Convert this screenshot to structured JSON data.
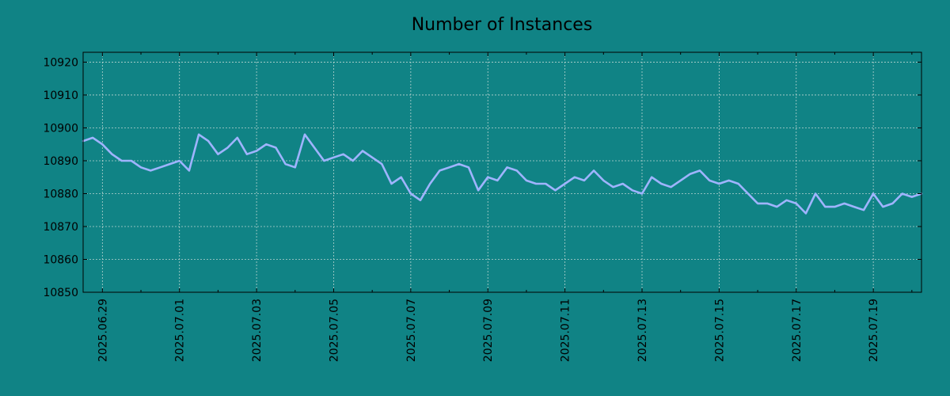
{
  "chart_data": {
    "type": "line",
    "title": "Number of Instances",
    "xlabel": "",
    "ylabel": "",
    "x_tick_labels": [
      "2025.06.29",
      "2025.07.01",
      "2025.07.03",
      "2025.07.05",
      "2025.07.07",
      "2025.07.09",
      "2025.07.11",
      "2025.07.13",
      "2025.07.15",
      "2025.07.17",
      "2025.07.19"
    ],
    "y_ticks": [
      10850,
      10860,
      10870,
      10880,
      10890,
      10900,
      10910,
      10920
    ],
    "xlim": [
      "2025-06-28 12:00",
      "2025-07-20 06:00"
    ],
    "ylim": [
      10850,
      10923
    ],
    "grid": true,
    "legend": "none",
    "colors": {
      "background": "#108385",
      "line": "#9fb4ff",
      "axes": "#000000",
      "grid": "#b7d4d0"
    },
    "series": [
      {
        "x": [
          "2025-06-28 12:00",
          "2025-06-28 18:00",
          "2025-06-29 00:00",
          "2025-06-29 06:00",
          "2025-06-29 12:00",
          "2025-06-29 18:00",
          "2025-06-30 00:00",
          "2025-06-30 06:00",
          "2025-06-30 12:00",
          "2025-06-30 18:00",
          "2025-07-01 00:00",
          "2025-07-01 06:00",
          "2025-07-01 12:00",
          "2025-07-01 18:00",
          "2025-07-02 00:00",
          "2025-07-02 06:00",
          "2025-07-02 12:00",
          "2025-07-02 18:00",
          "2025-07-03 00:00",
          "2025-07-03 06:00",
          "2025-07-03 12:00",
          "2025-07-03 18:00",
          "2025-07-04 00:00",
          "2025-07-04 06:00",
          "2025-07-04 12:00",
          "2025-07-04 18:00",
          "2025-07-05 00:00",
          "2025-07-05 06:00",
          "2025-07-05 12:00",
          "2025-07-05 18:00",
          "2025-07-06 00:00",
          "2025-07-06 06:00",
          "2025-07-06 12:00",
          "2025-07-06 18:00",
          "2025-07-07 00:00",
          "2025-07-07 06:00",
          "2025-07-07 12:00",
          "2025-07-07 18:00",
          "2025-07-08 00:00",
          "2025-07-08 06:00",
          "2025-07-08 12:00",
          "2025-07-08 18:00",
          "2025-07-09 00:00",
          "2025-07-09 06:00",
          "2025-07-09 12:00",
          "2025-07-09 18:00",
          "2025-07-10 00:00",
          "2025-07-10 06:00",
          "2025-07-10 12:00",
          "2025-07-10 18:00",
          "2025-07-11 00:00",
          "2025-07-11 06:00",
          "2025-07-11 12:00",
          "2025-07-11 18:00",
          "2025-07-12 00:00",
          "2025-07-12 06:00",
          "2025-07-12 12:00",
          "2025-07-12 18:00",
          "2025-07-13 00:00",
          "2025-07-13 06:00",
          "2025-07-13 12:00",
          "2025-07-13 18:00",
          "2025-07-14 00:00",
          "2025-07-14 06:00",
          "2025-07-14 12:00",
          "2025-07-14 18:00",
          "2025-07-15 00:00",
          "2025-07-15 06:00",
          "2025-07-15 12:00",
          "2025-07-15 18:00",
          "2025-07-16 00:00",
          "2025-07-16 06:00",
          "2025-07-16 12:00",
          "2025-07-16 18:00",
          "2025-07-17 00:00",
          "2025-07-17 06:00",
          "2025-07-17 12:00",
          "2025-07-17 18:00",
          "2025-07-18 00:00",
          "2025-07-18 06:00",
          "2025-07-18 12:00",
          "2025-07-18 18:00",
          "2025-07-19 00:00",
          "2025-07-19 06:00",
          "2025-07-19 12:00",
          "2025-07-19 18:00",
          "2025-07-20 00:00",
          "2025-07-20 06:00"
        ],
        "y": [
          10896,
          10897,
          10895,
          10892,
          10890,
          10890,
          10888,
          10887,
          10888,
          10889,
          10890,
          10887,
          10898,
          10896,
          10892,
          10894,
          10897,
          10892,
          10893,
          10895,
          10894,
          10889,
          10888,
          10898,
          10894,
          10890,
          10891,
          10892,
          10890,
          10893,
          10891,
          10889,
          10883,
          10885,
          10880,
          10878,
          10883,
          10887,
          10888,
          10889,
          10888,
          10881,
          10885,
          10884,
          10888,
          10887,
          10884,
          10883,
          10883,
          10881,
          10883,
          10885,
          10884,
          10887,
          10884,
          10882,
          10883,
          10881,
          10880,
          10885,
          10883,
          10882,
          10884,
          10886,
          10887,
          10884,
          10883,
          10884,
          10883,
          10880,
          10877,
          10877,
          10876,
          10878,
          10877,
          10874,
          10880,
          10876,
          10876,
          10877,
          10876,
          10875,
          10880,
          10876,
          10877,
          10880,
          10879,
          10880
        ]
      }
    ]
  }
}
